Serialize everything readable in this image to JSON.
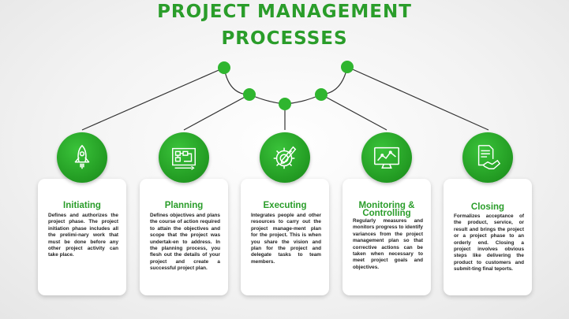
{
  "title": {
    "line1": "PROJECT MANAGEMENT",
    "line2": "PROCESSES"
  },
  "colors": {
    "accent": "#2a9d2a",
    "circle": "#229a22",
    "line": "#333333"
  },
  "steps": [
    {
      "name": "Initiating",
      "icon": "rocket-icon",
      "description": "Defines and authorizes the project phase. The project initiation phase includes all the prelimi-nary work that must be done before any other project activity can take place."
    },
    {
      "name": "Planning",
      "icon": "blueprint-icon",
      "description": "Defines objectives and plans the course of action required to attain the objectives and scope that the project was undertak-en to address. In the planning process, you flesh out the details of your project and create a successful project plan."
    },
    {
      "name": "Executing",
      "icon": "gear-pencil-icon",
      "description": "Integrates people and other resources to carry out the project manage-ment plan for the project. This is when you share the vision and plan for the project and delegate tasks to team members."
    },
    {
      "name_line1": "Monitoring &",
      "name_line2": "Controlling",
      "icon": "monitor-chart-icon",
      "description": "Regularly measures and monitors progress to identify variances from the project management plan so that corrective actions can be taken when necessary to meet project goals and objectives."
    },
    {
      "name": "Closing",
      "icon": "document-handshake-icon",
      "description": "Formalizes acceptance of the product, service, or result and brings the project or a project phase to an orderly end. Closing a project involves obvious steps like delivering the product to customers and submit-ting final teports."
    }
  ]
}
